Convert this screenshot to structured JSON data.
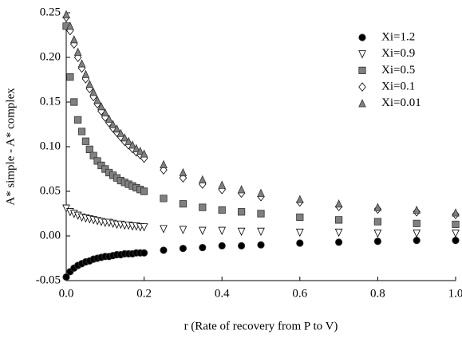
{
  "chart_data": {
    "type": "scatter",
    "xlabel": "r (Rate of recovery from P to V)",
    "ylabel": "A* simple - A* complex",
    "x": [
      0,
      0.01,
      0.02,
      0.03,
      0.04,
      0.05,
      0.06,
      0.07,
      0.08,
      0.09,
      0.1,
      0.11,
      0.12,
      0.13,
      0.14,
      0.15,
      0.16,
      0.17,
      0.18,
      0.19,
      0.2,
      0.25,
      0.3,
      0.35,
      0.4,
      0.45,
      0.5,
      0.6,
      0.7,
      0.8,
      0.9,
      1.0
    ],
    "series": [
      {
        "name": "Xi=1.2",
        "color": "#000000",
        "marker": "circle",
        "values": [
          -0.046,
          -0.04,
          -0.036,
          -0.033,
          -0.031,
          -0.029,
          -0.028,
          -0.026,
          -0.025,
          -0.024,
          -0.023,
          -0.023,
          -0.022,
          -0.021,
          -0.021,
          -0.02,
          -0.02,
          -0.02,
          -0.019,
          -0.019,
          -0.019,
          -0.016,
          -0.014,
          -0.013,
          -0.011,
          -0.011,
          -0.01,
          -0.008,
          -0.007,
          -0.006,
          -0.005,
          -0.005
        ]
      },
      {
        "name": "Xi=0.9",
        "color": "#ffffff",
        "marker": "triangle-down",
        "values": [
          0.031,
          0.027,
          0.025,
          0.023,
          0.021,
          0.02,
          0.019,
          0.018,
          0.017,
          0.016,
          0.015,
          0.015,
          0.014,
          0.013,
          0.013,
          0.012,
          0.012,
          0.011,
          0.011,
          0.01,
          0.01,
          0.008,
          0.007,
          0.006,
          0.006,
          0.005,
          0.005,
          0.004,
          0.004,
          0.003,
          0.003,
          0.003
        ]
      },
      {
        "name": "Xi=0.5",
        "color": "#808080",
        "marker": "square",
        "values": [
          0.235,
          0.178,
          0.15,
          0.13,
          0.117,
          0.106,
          0.097,
          0.09,
          0.084,
          0.079,
          0.075,
          0.071,
          0.068,
          0.065,
          0.062,
          0.06,
          0.058,
          0.056,
          0.054,
          0.052,
          0.05,
          0.042,
          0.036,
          0.032,
          0.029,
          0.027,
          0.025,
          0.021,
          0.018,
          0.016,
          0.014,
          0.013
        ]
      },
      {
        "name": "Xi=0.1",
        "color": "#ffffff",
        "marker": "diamond",
        "values": [
          0.245,
          0.23,
          0.215,
          0.2,
          0.188,
          0.176,
          0.165,
          0.156,
          0.148,
          0.14,
          0.133,
          0.127,
          0.121,
          0.116,
          0.111,
          0.106,
          0.102,
          0.098,
          0.094,
          0.091,
          0.087,
          0.074,
          0.065,
          0.058,
          0.052,
          0.048,
          0.044,
          0.038,
          0.033,
          0.03,
          0.027,
          0.024
        ]
      },
      {
        "name": "Xi=0.01",
        "color": "#808080",
        "marker": "triangle-up",
        "values": [
          0.248,
          0.235,
          0.22,
          0.206,
          0.193,
          0.181,
          0.17,
          0.161,
          0.152,
          0.145,
          0.138,
          0.131,
          0.125,
          0.12,
          0.115,
          0.11,
          0.106,
          0.102,
          0.098,
          0.095,
          0.092,
          0.08,
          0.071,
          0.063,
          0.057,
          0.052,
          0.048,
          0.041,
          0.036,
          0.032,
          0.029,
          0.026
        ]
      }
    ],
    "xlim": [
      0,
      1.0
    ],
    "xticks": [
      {
        "value": 0,
        "label": "0.0"
      },
      0.2,
      0.4,
      0.6,
      0.8,
      {
        "value": 1.0,
        "label": "1.0"
      }
    ],
    "ylim": [
      -0.05,
      0.25
    ],
    "yticks": [
      -0.05,
      {
        "value": 0,
        "label": "0.00"
      },
      0.05,
      {
        "value": 0.1,
        "label": "0.10"
      },
      0.15,
      {
        "value": 0.2,
        "label": "0.20"
      },
      0.25
    ],
    "legend": "upper right"
  }
}
